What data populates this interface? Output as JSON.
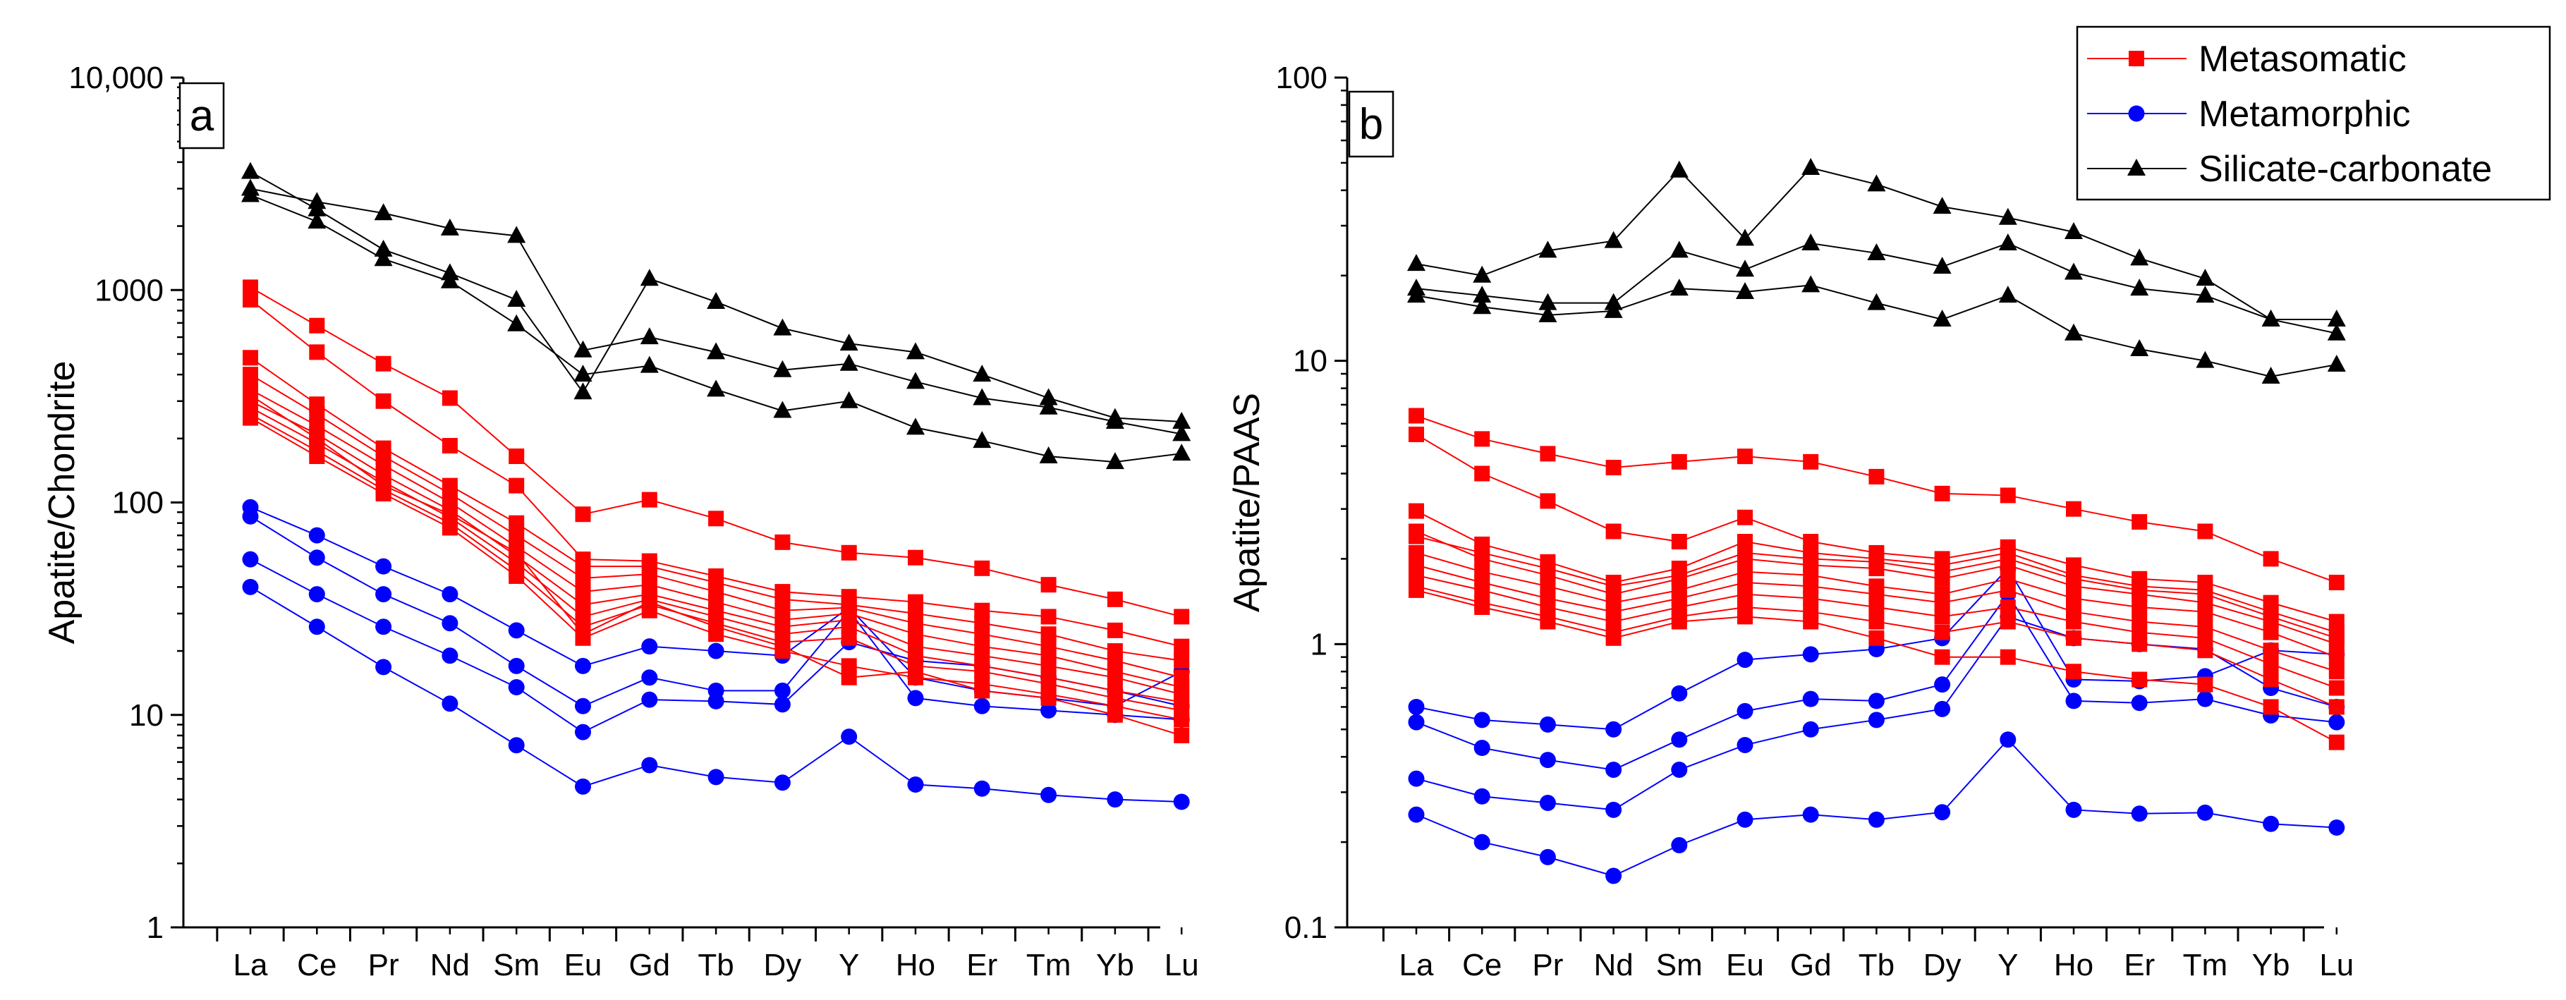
{
  "chart_data": [
    {
      "type": "line",
      "panel_label": "a",
      "ylabel": "Apatite/Chondrite",
      "xlabel": "",
      "yscale": "log",
      "ylim": [
        1,
        10000
      ],
      "yticks": [
        1,
        10,
        100,
        1000,
        10000
      ],
      "ytick_labels": [
        "1",
        "10",
        "100",
        "1000",
        "10,000"
      ],
      "categories": [
        "La",
        "Ce",
        "Pr",
        "Nd",
        "Sm",
        "Eu",
        "Gd",
        "Tb",
        "Dy",
        "Y",
        "Ho",
        "Er",
        "Tm",
        "Yb",
        "Lu"
      ],
      "series": [
        {
          "name": "Metasomatic",
          "values": [
            1030,
            680,
            450,
            310,
            165,
            88,
            103,
            84,
            65,
            58,
            55,
            49,
            41,
            35,
            29
          ]
        },
        {
          "name": "Metasomatic",
          "values": [
            900,
            510,
            300,
            185,
            120,
            54,
            53,
            45,
            38,
            36,
            34,
            31,
            29,
            25,
            21
          ]
        },
        {
          "name": "Metasomatic",
          "values": [
            480,
            290,
            180,
            120,
            80,
            50,
            50,
            42,
            35,
            33,
            30,
            27,
            24,
            20,
            18
          ]
        },
        {
          "name": "Metasomatic",
          "values": [
            400,
            260,
            165,
            110,
            70,
            44,
            46,
            38,
            31,
            32,
            27,
            24,
            21,
            18,
            15
          ]
        },
        {
          "name": "Metasomatic",
          "values": [
            340,
            230,
            150,
            100,
            62,
            38,
            41,
            34,
            28,
            30,
            24,
            21,
            19,
            16,
            13.5
          ]
        },
        {
          "name": "Metasomatic",
          "values": [
            300,
            210,
            135,
            92,
            56,
            33,
            37,
            31,
            26,
            28,
            21,
            19,
            17,
            15,
            12.5
          ]
        },
        {
          "name": "Metasomatic",
          "values": [
            280,
            190,
            125,
            85,
            52,
            29,
            35,
            29,
            24,
            26,
            19,
            17,
            15,
            13,
            11.5
          ]
        },
        {
          "name": "Metasomatic",
          "values": [
            260,
            175,
            115,
            80,
            48,
            26,
            33,
            27,
            22,
            23,
            17,
            16,
            14,
            12,
            10.5
          ]
        },
        {
          "name": "Metasomatic",
          "values": [
            250,
            165,
            110,
            76,
            45,
            23,
            31,
            24,
            20,
            17,
            15,
            14,
            12.5,
            11,
            9.5
          ]
        },
        {
          "name": "Metasomatic",
          "values": [
            320,
            200,
            120,
            88,
            58,
            24,
            34,
            26,
            21,
            15,
            16,
            13,
            12,
            10,
            8
          ]
        },
        {
          "name": "Metamorphic",
          "values": [
            95,
            70,
            50,
            37,
            25,
            17,
            21,
            20,
            19,
            32,
            15,
            13,
            12,
            11,
            16
          ]
        },
        {
          "name": "Metamorphic",
          "values": [
            86,
            55,
            37,
            27,
            17,
            11,
            15,
            13,
            13,
            31,
            12,
            11,
            10.5,
            10,
            9.5
          ]
        },
        {
          "name": "Metamorphic",
          "values": [
            54,
            37,
            26,
            19,
            13.5,
            8.3,
            11.8,
            11.6,
            11.2,
            22,
            18,
            17,
            15,
            13,
            11
          ]
        },
        {
          "name": "Metamorphic",
          "values": [
            40,
            26,
            16.8,
            11.3,
            7.2,
            4.6,
            5.8,
            5.1,
            4.8,
            7.9,
            4.7,
            4.5,
            4.2,
            4.0,
            3.9
          ]
        },
        {
          "name": "Silicate-carbonate",
          "values": [
            3600,
            2400,
            1550,
            1200,
            900,
            330,
            1130,
            880,
            660,
            560,
            510,
            400,
            310,
            250,
            240
          ]
        },
        {
          "name": "Silicate-carbonate",
          "values": [
            3000,
            2600,
            2300,
            1950,
            1800,
            520,
            600,
            510,
            420,
            450,
            370,
            310,
            280,
            240,
            210
          ]
        },
        {
          "name": "Silicate-carbonate",
          "values": [
            2800,
            2100,
            1400,
            1100,
            690,
            400,
            440,
            340,
            270,
            300,
            225,
            195,
            165,
            155,
            170
          ]
        }
      ]
    },
    {
      "type": "line",
      "panel_label": "b",
      "ylabel": "Apatite/PAAS",
      "xlabel": "",
      "yscale": "log",
      "ylim": [
        0.1,
        100
      ],
      "yticks": [
        0.1,
        1,
        10,
        100
      ],
      "ytick_labels": [
        "0.1",
        "1",
        "10",
        "100"
      ],
      "categories": [
        "La",
        "Ce",
        "Pr",
        "Nd",
        "Sm",
        "Eu",
        "Gd",
        "Tb",
        "Dy",
        "Y",
        "Ho",
        "Er",
        "Tm",
        "Yb",
        "Lu"
      ],
      "series": [
        {
          "name": "Metasomatic",
          "values": [
            6.4,
            5.3,
            4.7,
            4.2,
            4.4,
            4.6,
            4.4,
            3.9,
            3.4,
            3.35,
            3.0,
            2.7,
            2.5,
            2.0,
            1.65
          ]
        },
        {
          "name": "Metasomatic",
          "values": [
            5.5,
            4.0,
            3.2,
            2.5,
            2.3,
            2.8,
            2.3,
            2.1,
            2.0,
            2.2,
            1.9,
            1.7,
            1.65,
            1.4,
            1.2
          ]
        },
        {
          "name": "Metasomatic",
          "values": [
            2.95,
            2.25,
            1.95,
            1.65,
            1.85,
            2.3,
            2.1,
            2.0,
            1.9,
            2.1,
            1.75,
            1.6,
            1.55,
            1.3,
            1.1
          ]
        },
        {
          "name": "Metasomatic",
          "values": [
            2.5,
            2.0,
            1.75,
            1.5,
            1.7,
            2.0,
            1.9,
            1.85,
            1.7,
            1.9,
            1.6,
            1.5,
            1.4,
            1.2,
            1.0
          ]
        },
        {
          "name": "Metasomatic",
          "values": [
            2.1,
            1.8,
            1.6,
            1.4,
            1.55,
            1.8,
            1.75,
            1.6,
            1.5,
            1.7,
            1.45,
            1.35,
            1.3,
            1.1,
            0.9
          ]
        },
        {
          "name": "Metasomatic",
          "values": [
            1.9,
            1.65,
            1.45,
            1.3,
            1.45,
            1.65,
            1.6,
            1.5,
            1.4,
            1.55,
            1.3,
            1.2,
            1.15,
            0.95,
            0.8
          ]
        },
        {
          "name": "Metasomatic",
          "values": [
            1.75,
            1.55,
            1.35,
            1.2,
            1.35,
            1.5,
            1.45,
            1.35,
            1.25,
            1.35,
            1.2,
            1.1,
            1.05,
            0.85,
            0.7
          ]
        },
        {
          "name": "Metasomatic",
          "values": [
            1.6,
            1.4,
            1.25,
            1.1,
            1.25,
            1.35,
            1.3,
            1.2,
            1.1,
            1.2,
            1.05,
            1.0,
            0.95,
            0.75,
            0.6
          ]
        },
        {
          "name": "Metasomatic",
          "values": [
            1.55,
            1.35,
            1.2,
            1.05,
            1.2,
            1.25,
            1.2,
            1.05,
            0.9,
            0.9,
            0.8,
            0.75,
            0.72,
            0.6,
            0.45
          ]
        },
        {
          "name": "Metasomatic",
          "values": [
            2.4,
            2.1,
            1.85,
            1.6,
            1.75,
            2.1,
            2.0,
            1.95,
            1.8,
            2.0,
            1.7,
            1.55,
            1.5,
            1.25,
            1.05
          ]
        },
        {
          "name": "Metamorphic",
          "values": [
            0.6,
            0.54,
            0.52,
            0.5,
            0.67,
            0.88,
            0.92,
            0.96,
            1.05,
            1.85,
            0.75,
            0.74,
            0.77,
            0.95,
            0.92
          ]
        },
        {
          "name": "Metamorphic",
          "values": [
            0.53,
            0.43,
            0.39,
            0.36,
            0.46,
            0.58,
            0.64,
            0.63,
            0.72,
            1.5,
            0.63,
            0.62,
            0.64,
            0.56,
            0.53
          ]
        },
        {
          "name": "Metamorphic",
          "values": [
            0.335,
            0.29,
            0.275,
            0.26,
            0.36,
            0.44,
            0.5,
            0.54,
            0.59,
            1.25,
            1.05,
            1.0,
            0.96,
            0.7,
            0.6
          ]
        },
        {
          "name": "Metamorphic",
          "values": [
            0.25,
            0.2,
            0.177,
            0.152,
            0.195,
            0.24,
            0.25,
            0.24,
            0.255,
            0.46,
            0.26,
            0.252,
            0.254,
            0.232,
            0.225
          ]
        },
        {
          "name": "Silicate-carbonate",
          "values": [
            22,
            20,
            24.5,
            26.5,
            47,
            27,
            48,
            42,
            35,
            32,
            28.5,
            23,
            19.5,
            14,
            12.5
          ]
        },
        {
          "name": "Silicate-carbonate",
          "values": [
            18,
            17,
            16,
            16,
            24.5,
            21,
            26,
            24,
            21.5,
            26,
            20.5,
            18,
            17,
            14,
            14
          ]
        },
        {
          "name": "Silicate-carbonate",
          "values": [
            17,
            15.5,
            14.5,
            15,
            18,
            17.5,
            18.5,
            16,
            14,
            17,
            12.5,
            11,
            10,
            8.8,
            9.7
          ]
        }
      ]
    }
  ],
  "legend": {
    "placement": "top-right",
    "items": [
      {
        "label": "Metasomatic",
        "marker": "square",
        "color": "#ff0000"
      },
      {
        "label": "Metamorphic",
        "marker": "circle",
        "color": "#0000ff"
      },
      {
        "label": "Silicate-carbonate",
        "marker": "triangle",
        "color": "#000000"
      }
    ]
  },
  "colors": {
    "Metasomatic": "#ff0000",
    "Metamorphic": "#0000ff",
    "Silicate-carbonate": "#000000"
  }
}
